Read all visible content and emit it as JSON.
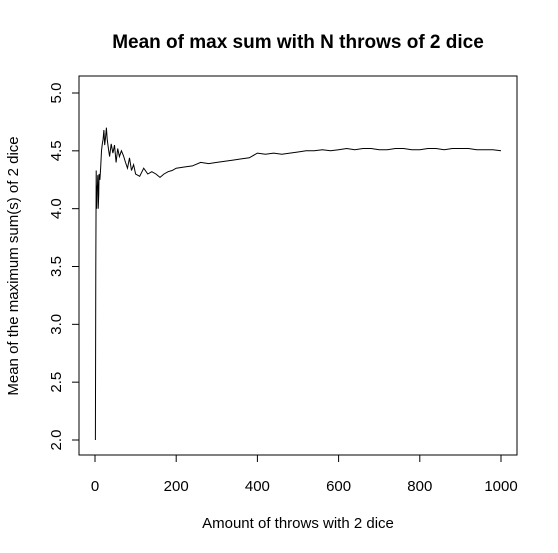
{
  "chart_data": {
    "type": "line",
    "title": "Mean of max sum with N throws of 2 dice",
    "xlabel": "Amount of throws with 2 dice",
    "ylabel": "Mean of the maximum sum(s) of 2 dice",
    "xlim": [
      0,
      1000
    ],
    "ylim": [
      2.0,
      5.0
    ],
    "xticks": [
      0,
      200,
      400,
      600,
      800,
      1000
    ],
    "xtick_labels": [
      "0",
      "200",
      "400",
      "600",
      "800",
      "1000"
    ],
    "yticks": [
      2.0,
      2.5,
      3.0,
      3.5,
      4.0,
      4.5,
      5.0
    ],
    "ytick_labels": [
      "2.0",
      "2.5",
      "3.0",
      "3.5",
      "4.0",
      "4.5",
      "5.0"
    ],
    "grid": false,
    "legend": "none",
    "line_color": "#000000",
    "series": [
      {
        "x": [
          1,
          2,
          3,
          4,
          5,
          6,
          7,
          8,
          9,
          10,
          12,
          14,
          16,
          18,
          20,
          22,
          24,
          26,
          28,
          30,
          33,
          36,
          40,
          44,
          48,
          52,
          56,
          60,
          65,
          70,
          75,
          80,
          85,
          90,
          95,
          100,
          110,
          120,
          130,
          140,
          150,
          160,
          170,
          180,
          190,
          200,
          220,
          240,
          260,
          280,
          300,
          320,
          340,
          360,
          380,
          400,
          420,
          440,
          460,
          480,
          500,
          520,
          540,
          560,
          580,
          600,
          620,
          640,
          660,
          680,
          700,
          720,
          740,
          760,
          780,
          800,
          820,
          840,
          860,
          880,
          900,
          920,
          940,
          960,
          980,
          1000
        ],
        "y": [
          2.0,
          3.5,
          4.33,
          4.0,
          4.2,
          4.17,
          4.29,
          4.0,
          4.11,
          4.3,
          4.25,
          4.36,
          4.5,
          4.56,
          4.6,
          4.68,
          4.55,
          4.62,
          4.7,
          4.6,
          4.52,
          4.45,
          4.56,
          4.48,
          4.55,
          4.4,
          4.52,
          4.45,
          4.5,
          4.46,
          4.4,
          4.35,
          4.44,
          4.33,
          4.38,
          4.3,
          4.28,
          4.35,
          4.3,
          4.32,
          4.3,
          4.27,
          4.3,
          4.32,
          4.33,
          4.35,
          4.36,
          4.37,
          4.4,
          4.39,
          4.4,
          4.41,
          4.42,
          4.43,
          4.44,
          4.48,
          4.47,
          4.48,
          4.47,
          4.48,
          4.49,
          4.5,
          4.5,
          4.51,
          4.5,
          4.51,
          4.52,
          4.51,
          4.52,
          4.52,
          4.51,
          4.51,
          4.52,
          4.52,
          4.51,
          4.51,
          4.52,
          4.52,
          4.51,
          4.52,
          4.52,
          4.52,
          4.51,
          4.51,
          4.51,
          4.5
        ]
      }
    ]
  }
}
